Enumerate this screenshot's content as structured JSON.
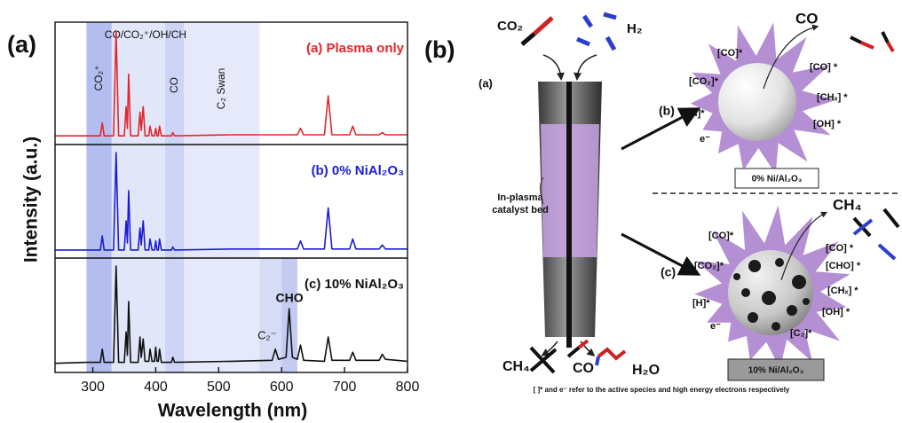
{
  "chart_data": {
    "type": "line",
    "panel_label": "(a)",
    "xlabel": "Wavelength (nm)",
    "ylabel": "Intensity (a.u.)",
    "xlim": [
      240,
      800
    ],
    "xticks": [
      300,
      400,
      500,
      600,
      700,
      800
    ],
    "bands": [
      {
        "xlim": [
          290,
          330
        ],
        "label": "CO₂⁺",
        "color": "#b3bdf0"
      },
      {
        "xlim": [
          330,
          415
        ],
        "label": "CO/CO₂⁺/OH/CH",
        "color": "#e2e6f9"
      },
      {
        "xlim": [
          415,
          445
        ],
        "label": "CO",
        "color": "#cdd4f5"
      },
      {
        "xlim": [
          445,
          565
        ],
        "label": "C₂ Swan",
        "color": "#e6e9fa"
      }
    ],
    "series": [
      {
        "name": "(a)  Plasma only",
        "color": "#e3262d",
        "ylim": [
          -0.05,
          1.08
        ],
        "x": [
          240,
          290,
          312,
          315,
          318,
          333,
          337,
          341,
          350,
          353,
          355,
          357,
          360,
          372,
          375,
          377,
          380,
          383,
          389,
          391,
          394,
          398,
          400,
          402,
          404,
          406,
          409,
          425,
          427,
          430,
          520,
          625,
          630,
          635,
          668,
          674,
          680,
          708,
          713,
          718,
          755,
          760,
          765,
          800
        ],
        "values": [
          0.03,
          0.03,
          0.03,
          0.15,
          0.03,
          0.03,
          1.0,
          0.03,
          0.03,
          0.3,
          0.1,
          0.6,
          0.03,
          0.03,
          0.25,
          0.08,
          0.3,
          0.03,
          0.03,
          0.12,
          0.03,
          0.03,
          0.1,
          0.03,
          0.03,
          0.12,
          0.03,
          0.03,
          0.06,
          0.03,
          0.04,
          0.04,
          0.1,
          0.04,
          0.04,
          0.4,
          0.04,
          0.04,
          0.12,
          0.04,
          0.04,
          0.06,
          0.04,
          0.04
        ]
      },
      {
        "name": "(b) 0% NiAl₂O₃",
        "color": "#1c1cd6",
        "ylim": [
          -0.05,
          1.08
        ],
        "x": [
          240,
          290,
          312,
          315,
          318,
          333,
          337,
          341,
          350,
          353,
          355,
          357,
          360,
          372,
          375,
          377,
          380,
          383,
          389,
          391,
          394,
          398,
          400,
          402,
          404,
          406,
          409,
          425,
          427,
          430,
          520,
          625,
          630,
          635,
          668,
          674,
          680,
          708,
          713,
          718,
          755,
          760,
          765,
          800
        ],
        "values": [
          0.03,
          0.03,
          0.03,
          0.17,
          0.03,
          0.03,
          1.0,
          0.03,
          0.03,
          0.32,
          0.1,
          0.62,
          0.03,
          0.03,
          0.25,
          0.08,
          0.32,
          0.03,
          0.03,
          0.14,
          0.03,
          0.03,
          0.12,
          0.03,
          0.03,
          0.14,
          0.03,
          0.03,
          0.06,
          0.03,
          0.04,
          0.04,
          0.12,
          0.04,
          0.04,
          0.45,
          0.04,
          0.04,
          0.14,
          0.04,
          0.04,
          0.08,
          0.04,
          0.04
        ]
      },
      {
        "name": "(c)  10% NiAl₂O₃",
        "color": "#111111",
        "ylim": [
          -0.05,
          1.08
        ],
        "bands": [
          {
            "xlim": [
              565,
              600
            ],
            "label": "C₂⁻",
            "color": "#d6dcf6"
          },
          {
            "xlim": [
              600,
              625
            ],
            "label": "CHO",
            "color": "#c3cbf3"
          }
        ],
        "x": [
          240,
          290,
          312,
          315,
          318,
          333,
          337,
          341,
          350,
          353,
          355,
          357,
          360,
          372,
          375,
          377,
          380,
          383,
          389,
          391,
          394,
          398,
          400,
          402,
          404,
          406,
          409,
          425,
          427,
          430,
          520,
          585,
          590,
          595,
          607,
          612,
          617,
          625,
          630,
          635,
          668,
          674,
          680,
          708,
          713,
          718,
          755,
          760,
          765,
          800
        ],
        "values": [
          0.04,
          0.05,
          0.05,
          0.18,
          0.05,
          0.05,
          1.0,
          0.05,
          0.05,
          0.35,
          0.12,
          0.65,
          0.05,
          0.05,
          0.3,
          0.1,
          0.28,
          0.06,
          0.06,
          0.18,
          0.06,
          0.06,
          0.2,
          0.06,
          0.06,
          0.18,
          0.05,
          0.05,
          0.1,
          0.05,
          0.06,
          0.07,
          0.18,
          0.08,
          0.1,
          0.58,
          0.1,
          0.08,
          0.22,
          0.07,
          0.06,
          0.3,
          0.07,
          0.07,
          0.15,
          0.07,
          0.07,
          0.13,
          0.08,
          0.06
        ]
      }
    ]
  },
  "diagram": {
    "panel_label": "(b)",
    "feed": [
      "CO₂",
      "H₂"
    ],
    "reactor_label": "(a)",
    "catalyst_label": [
      "In-plasma",
      "catalyst bed"
    ],
    "products": [
      "CH₄",
      "CO",
      "H₂O"
    ],
    "note": "[ ]* and e⁻ refer to the active species and high energy electrons respectively",
    "cases": [
      {
        "label": "(b)",
        "product": "CO",
        "catalyst": "0% Ni/Al₂O₃",
        "species": [
          "[CO]*",
          "[CO₂]*",
          "[H]*",
          "e⁻",
          "[CO] *",
          "[CHₓ] *",
          "[OH] *"
        ]
      },
      {
        "label": "(c)",
        "product": "CH₄",
        "catalyst": "10% Ni/Al₂O₃",
        "species": [
          "[CO]*",
          "[CO₂]*",
          "[H]*",
          "e⁻",
          "[CO] *",
          "[CHO] *",
          "[CHₓ] *",
          "[OH] *",
          "[C₂]*"
        ]
      }
    ]
  }
}
